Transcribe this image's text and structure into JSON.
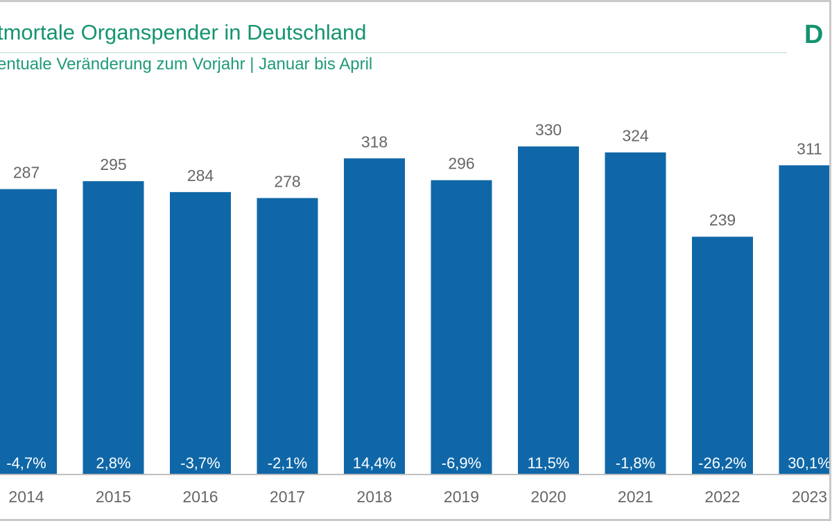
{
  "header": {
    "title": "tmortale Organspender in Deutschland",
    "subtitle": "entuale Veränderung zum Vorjahr | Januar bis April",
    "logo_text": "D"
  },
  "colors": {
    "bar": "#0f67a8",
    "title": "#14946f",
    "label": "#666666",
    "axis": "#bfbfbf"
  },
  "chart_data": {
    "type": "bar",
    "categories": [
      "2014",
      "2015",
      "2016",
      "2017",
      "2018",
      "2019",
      "2020",
      "2021",
      "2022",
      "2023"
    ],
    "values": [
      287,
      295,
      284,
      278,
      318,
      296,
      330,
      324,
      239,
      311
    ],
    "change_labels": [
      "-4,7%",
      "2,8%",
      "-3,7%",
      "-2,1%",
      "14,4%",
      "-6,9%",
      "11,5%",
      "-1,8%",
      "-26,2%",
      "30,1%"
    ],
    "title": "tmortale Organspender in Deutschland",
    "subtitle": "entuale Veränderung zum Vorjahr | Januar bis April",
    "ylim": [
      0,
      330
    ],
    "grid": false,
    "legend": "none"
  }
}
